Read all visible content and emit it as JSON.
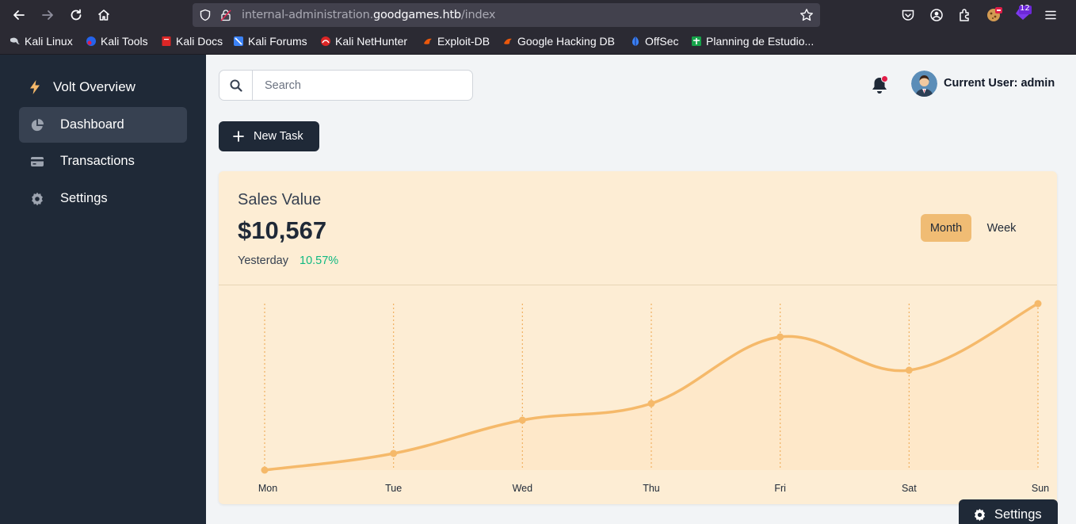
{
  "browser": {
    "url_prefix": "internal-administration.",
    "url_host": "goodgames.htb",
    "url_path": "/index",
    "extension_badge": "12",
    "bookmarks": [
      "Kali Linux",
      "Kali Tools",
      "Kali Docs",
      "Kali Forums",
      "Kali NetHunter",
      "Exploit-DB",
      "Google Hacking DB",
      "OffSec",
      "Planning de Estudio..."
    ]
  },
  "sidebar": {
    "brand": "Volt Overview",
    "items": [
      {
        "label": "Dashboard",
        "icon": "pie-chart-icon",
        "active": true
      },
      {
        "label": "Transactions",
        "icon": "credit-card-icon",
        "active": false
      },
      {
        "label": "Settings",
        "icon": "gear-icon",
        "active": false
      }
    ]
  },
  "header": {
    "search_placeholder": "Search",
    "user_label": "Current User: admin"
  },
  "actions": {
    "new_task_label": "New Task"
  },
  "sales_card": {
    "title": "Sales Value",
    "value": "$10,567",
    "period_label": "Yesterday",
    "change": "10.57%",
    "toggle_month": "Month",
    "toggle_week": "Week"
  },
  "chart_data": {
    "type": "area",
    "categories": [
      "Mon",
      "Tue",
      "Wed",
      "Thu",
      "Fri",
      "Sat",
      "Sun"
    ],
    "series": [
      {
        "values": [
          0,
          10,
          30,
          40,
          80,
          60,
          100
        ]
      }
    ],
    "ylim": [
      0,
      100
    ],
    "grid": "vertical dotted",
    "colors": {
      "line": "#f5b96a",
      "fill": "#fde6c4",
      "grid": "#f0b060"
    }
  },
  "floating": {
    "settings_label": "Settings"
  },
  "colors": {
    "sidebar_bg": "#1f2937",
    "card_bg": "#fdedd4",
    "accent": "#f0bc74",
    "positive": "#10b981",
    "notification": "#e11d48"
  }
}
